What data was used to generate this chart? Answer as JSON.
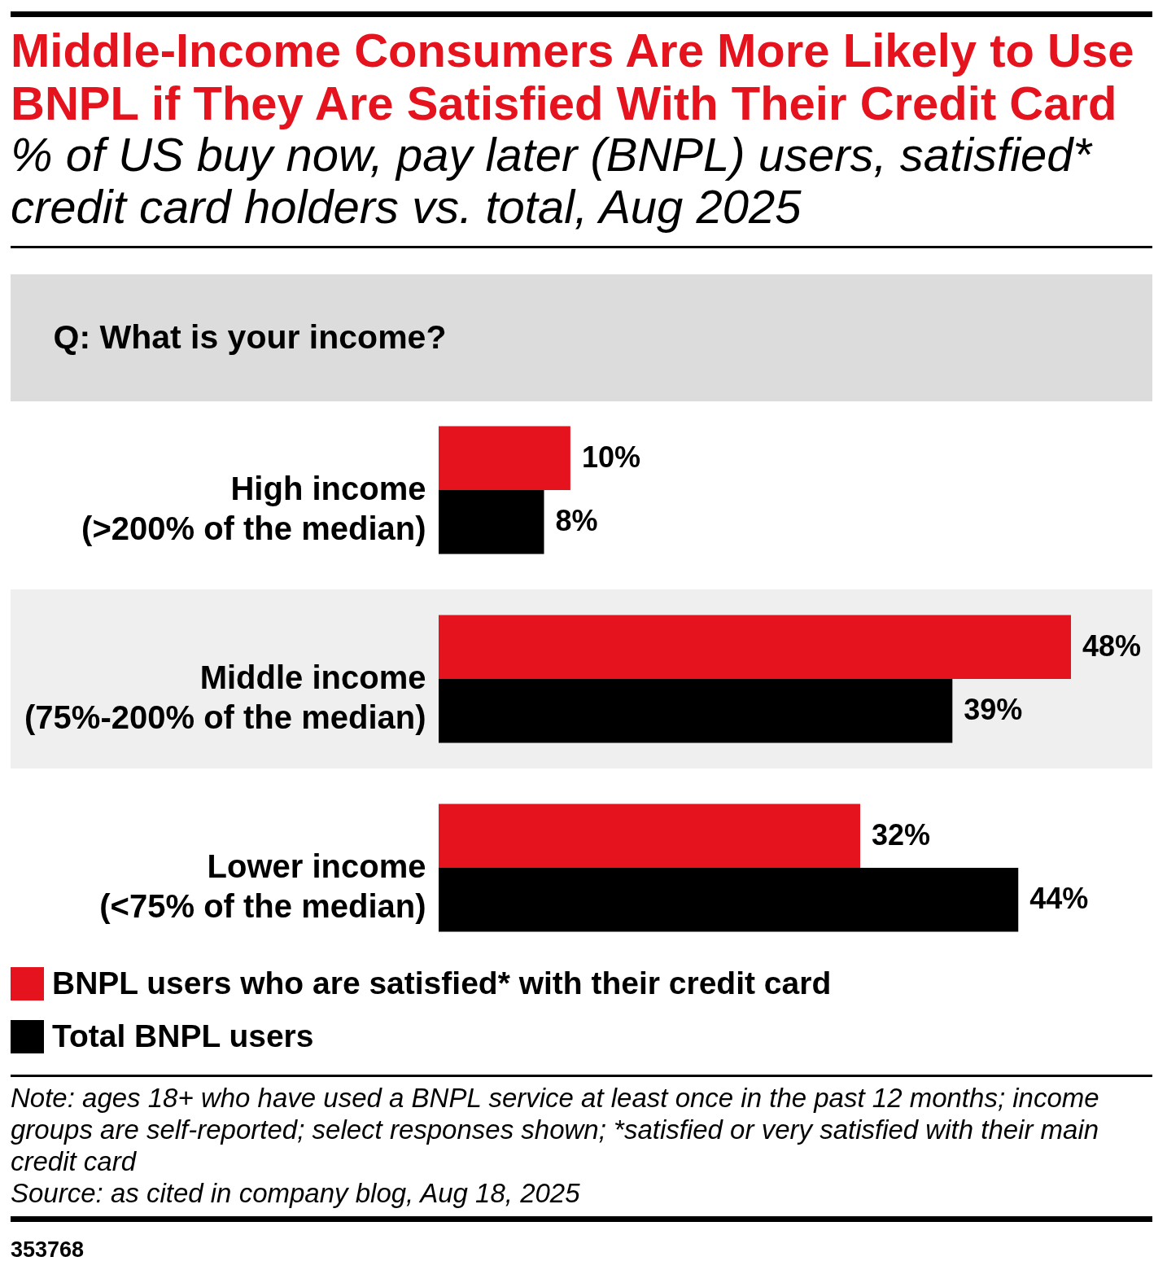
{
  "chart_data": {
    "type": "bar",
    "orientation": "horizontal",
    "title": "Middle-Income Consumers Are More Likely to Use BNPL if They Are Satisfied With Their Credit Card",
    "subtitle": "% of US buy now, pay later (BNPL) users, satisfied* credit card holders vs. total, Aug 2025",
    "ylabel": "Q: What is your income?",
    "categories": [
      "High income\n(>200% of the median)",
      "Middle income\n(75%-200% of the median)",
      "Lower income\n(<75% of the median)"
    ],
    "series": [
      {
        "name": "BNPL users who are satisfied* with their credit card",
        "color": "#e5131d",
        "values": [
          10,
          48,
          32
        ],
        "value_labels": [
          "10%",
          "48%",
          "32%"
        ]
      },
      {
        "name": "Total BNPL users",
        "color": "#000000",
        "values": [
          8,
          39,
          44
        ],
        "value_labels": [
          "8%",
          "39%",
          "44%"
        ]
      }
    ],
    "tick_labels": "y",
    "legend": "bottom left",
    "annotations": [
      "Note: ages 18+ who have used a BNPL service at least once in the past 12 months; income groups are self-reported; select responses shown; *satisfied or very satisfied with their main credit card",
      "Source: as cited in company blog, Aug 18, 2025",
      "353768"
    ]
  }
}
